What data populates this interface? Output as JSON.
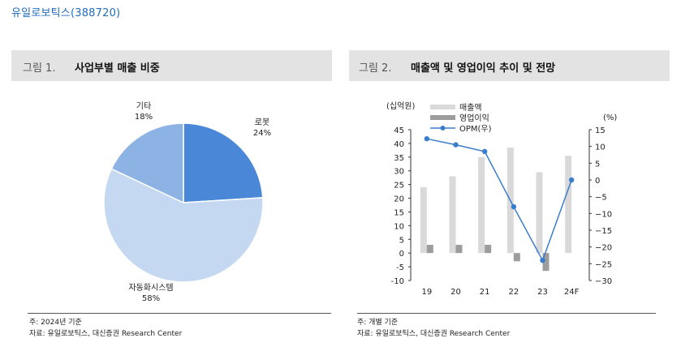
{
  "company_title": "유일로보틱스(388720)",
  "figure1": {
    "number": "그림 1.",
    "title": "사업부별 매출 비중",
    "note": "주: 2024년 기준",
    "source": "자료: 유일로보틱스, 대신증권 Research Center"
  },
  "figure2": {
    "number": "그림 2.",
    "title": "매출액 및 영업이익 추이 및 전망",
    "note": "주: 개별 기준",
    "source": "자료: 유일로보틱스, 대신증권 Research Center"
  },
  "chart_data": [
    {
      "type": "pie",
      "title": "사업부별 매출 비중",
      "slices": [
        {
          "label": "로봇",
          "value": 24,
          "value_label": "24%",
          "color": "#4a87d6"
        },
        {
          "label": "자동화시스템",
          "value": 58,
          "value_label": "58%",
          "color": "#c5d8f1"
        },
        {
          "label": "기타",
          "value": 18,
          "value_label": "18%",
          "color": "#8cb3e3"
        }
      ]
    },
    {
      "type": "bar",
      "title": "매출액 및 영업이익 추이 및 전망",
      "categories": [
        "19",
        "20",
        "21",
        "22",
        "23",
        "24F"
      ],
      "y_left": {
        "label": "(십억원)",
        "ylim": [
          -10,
          45
        ],
        "ticks": [
          -10,
          -5,
          0,
          5,
          10,
          15,
          20,
          25,
          30,
          35,
          40,
          45
        ]
      },
      "y_right": {
        "label": "(%)",
        "ylim": [
          -30,
          15
        ],
        "ticks": [
          -30,
          -25,
          -20,
          -15,
          -10,
          -5,
          0,
          5,
          10,
          15
        ]
      },
      "series": [
        {
          "name": "매출액",
          "kind": "bar",
          "axis": "left",
          "color": "#d9d9d9",
          "values": [
            24,
            28,
            35,
            38.5,
            29.5,
            35.5
          ]
        },
        {
          "name": "영업이익",
          "kind": "bar",
          "axis": "left",
          "color": "#9d9d9d",
          "values": [
            3,
            3,
            3,
            -3,
            -6.5,
            0
          ]
        },
        {
          "name": "OPM(우)",
          "kind": "line",
          "axis": "right",
          "color": "#3a7dcc",
          "values": [
            12.3,
            10.5,
            8.5,
            -8,
            -24,
            0
          ]
        }
      ],
      "legend_position": "top-left"
    }
  ]
}
